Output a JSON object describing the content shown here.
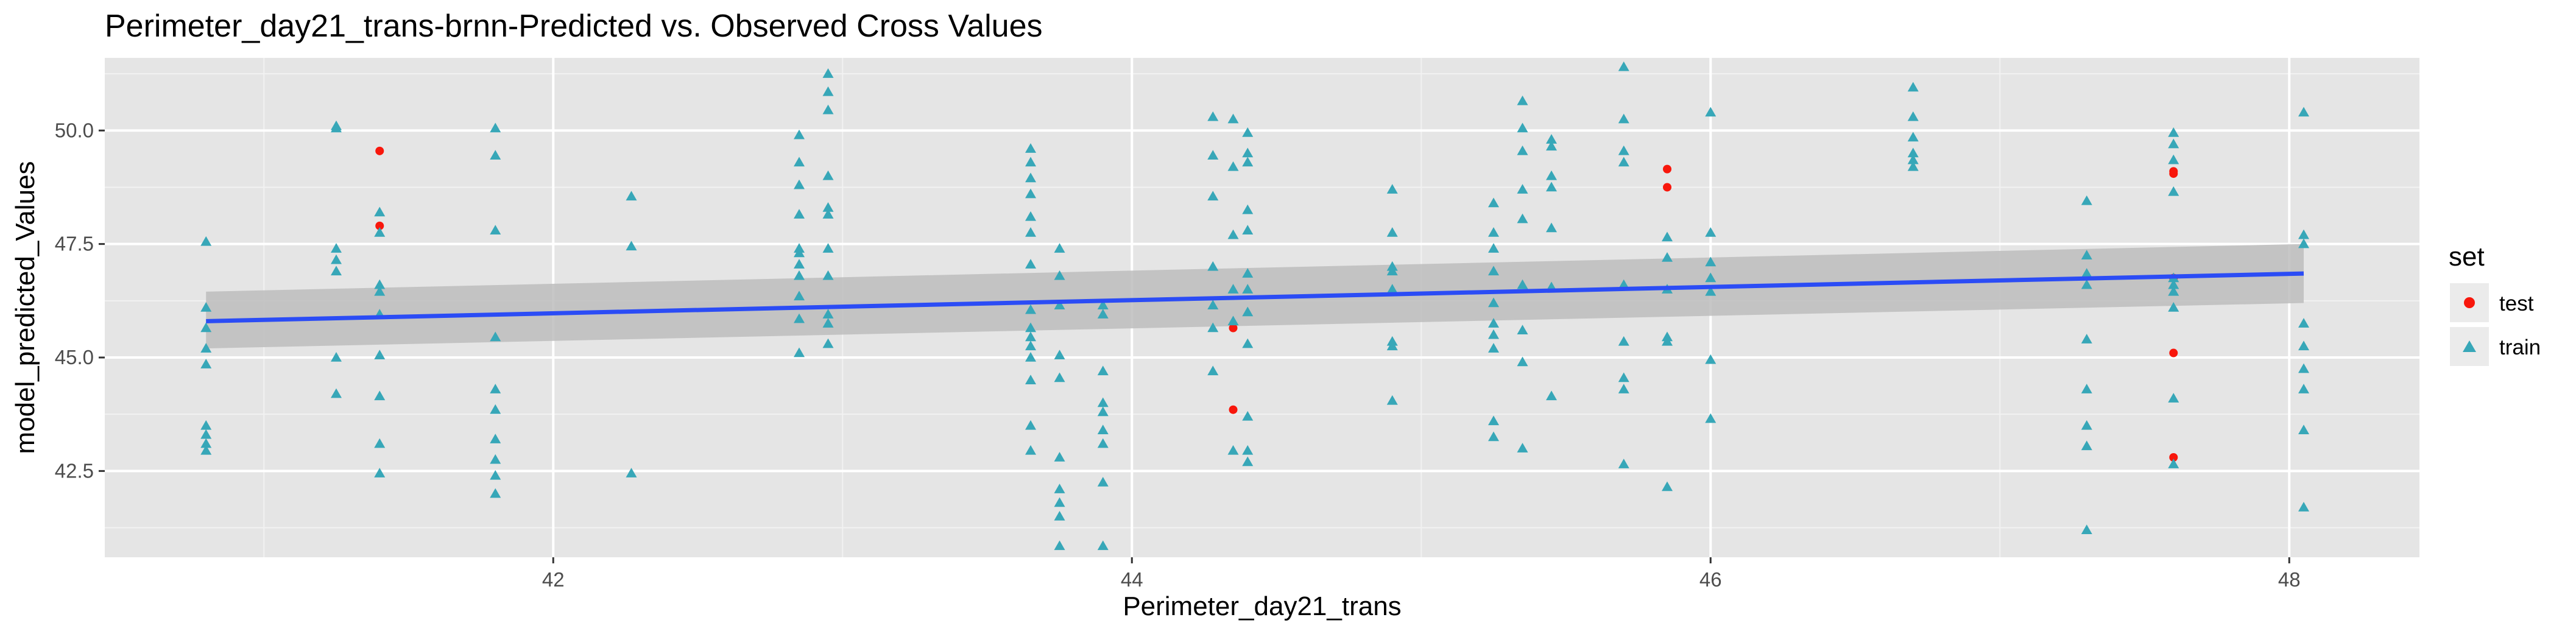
{
  "chart_data": {
    "type": "scatter",
    "title": "Perimeter_day21_trans-brnn-Predicted vs. Observed Cross Values",
    "xlabel": "Perimeter_day21_trans",
    "ylabel": "model_predicted_Values",
    "xlim": [
      40.45,
      48.45
    ],
    "ylim": [
      40.6,
      51.6
    ],
    "x_ticks": [
      42,
      44,
      46,
      48
    ],
    "x_tick_labels": [
      "42",
      "44",
      "46",
      "48"
    ],
    "y_ticks": [
      42.5,
      45.0,
      47.5,
      50.0
    ],
    "y_tick_labels": [
      "42.5",
      "45.0",
      "47.5",
      "50.0"
    ],
    "grid": true,
    "background": "#e5e5e5",
    "legend": {
      "title": "set",
      "position": "right",
      "entries": [
        {
          "label": "test",
          "shape": "circle",
          "color": "#f8170c"
        },
        {
          "label": "train",
          "shape": "triangle",
          "color": "#37a7b8"
        }
      ]
    },
    "series": [
      {
        "name": "test",
        "shape": "circle",
        "color": "#f8170c",
        "points": [
          [
            41.4,
            49.55
          ],
          [
            41.4,
            47.9
          ],
          [
            44.35,
            45.65
          ],
          [
            44.35,
            43.85
          ],
          [
            45.85,
            49.15
          ],
          [
            45.85,
            48.75
          ],
          [
            47.6,
            49.1
          ],
          [
            47.6,
            49.05
          ],
          [
            47.6,
            46.75
          ],
          [
            47.6,
            45.1
          ],
          [
            47.6,
            42.8
          ]
        ]
      },
      {
        "name": "train",
        "shape": "triangle",
        "color": "#37a7b8",
        "points": [
          [
            40.8,
            47.55
          ],
          [
            40.8,
            46.1
          ],
          [
            40.8,
            45.65
          ],
          [
            40.8,
            45.2
          ],
          [
            40.8,
            44.85
          ],
          [
            40.8,
            43.5
          ],
          [
            40.8,
            43.3
          ],
          [
            40.8,
            43.1
          ],
          [
            40.8,
            42.95
          ],
          [
            41.25,
            50.1
          ],
          [
            41.25,
            50.05
          ],
          [
            41.25,
            47.4
          ],
          [
            41.25,
            47.15
          ],
          [
            41.25,
            46.9
          ],
          [
            41.25,
            45.0
          ],
          [
            41.25,
            44.2
          ],
          [
            41.4,
            48.2
          ],
          [
            41.4,
            47.75
          ],
          [
            41.4,
            46.6
          ],
          [
            41.4,
            46.45
          ],
          [
            41.4,
            45.95
          ],
          [
            41.4,
            45.05
          ],
          [
            41.4,
            44.15
          ],
          [
            41.4,
            43.1
          ],
          [
            41.4,
            42.45
          ],
          [
            41.8,
            50.05
          ],
          [
            41.8,
            49.45
          ],
          [
            41.8,
            47.8
          ],
          [
            41.8,
            45.45
          ],
          [
            41.8,
            44.3
          ],
          [
            41.8,
            43.85
          ],
          [
            41.8,
            43.2
          ],
          [
            41.8,
            42.75
          ],
          [
            41.8,
            42.4
          ],
          [
            41.8,
            42.0
          ],
          [
            42.27,
            48.55
          ],
          [
            42.27,
            47.45
          ],
          [
            42.27,
            42.45
          ],
          [
            42.85,
            49.9
          ],
          [
            42.85,
            49.3
          ],
          [
            42.85,
            48.8
          ],
          [
            42.85,
            48.15
          ],
          [
            42.85,
            47.4
          ],
          [
            42.85,
            47.3
          ],
          [
            42.85,
            47.05
          ],
          [
            42.85,
            46.8
          ],
          [
            42.85,
            46.35
          ],
          [
            42.85,
            45.85
          ],
          [
            42.85,
            45.1
          ],
          [
            42.95,
            51.25
          ],
          [
            42.95,
            50.85
          ],
          [
            42.95,
            50.45
          ],
          [
            42.95,
            49.0
          ],
          [
            42.95,
            48.3
          ],
          [
            42.95,
            48.15
          ],
          [
            42.95,
            47.4
          ],
          [
            42.95,
            46.8
          ],
          [
            42.95,
            45.95
          ],
          [
            42.95,
            45.75
          ],
          [
            42.95,
            45.3
          ],
          [
            43.65,
            49.6
          ],
          [
            43.65,
            49.3
          ],
          [
            43.65,
            48.95
          ],
          [
            43.65,
            48.6
          ],
          [
            43.65,
            48.1
          ],
          [
            43.65,
            47.75
          ],
          [
            43.65,
            47.05
          ],
          [
            43.65,
            46.05
          ],
          [
            43.65,
            45.65
          ],
          [
            43.65,
            45.45
          ],
          [
            43.65,
            45.25
          ],
          [
            43.65,
            45.0
          ],
          [
            43.65,
            44.5
          ],
          [
            43.65,
            43.5
          ],
          [
            43.65,
            42.95
          ],
          [
            43.75,
            47.4
          ],
          [
            43.75,
            46.8
          ],
          [
            43.75,
            46.15
          ],
          [
            43.75,
            45.05
          ],
          [
            43.75,
            44.55
          ],
          [
            43.75,
            42.8
          ],
          [
            43.75,
            42.1
          ],
          [
            43.75,
            41.8
          ],
          [
            43.75,
            41.5
          ],
          [
            43.75,
            40.85
          ],
          [
            43.9,
            46.15
          ],
          [
            43.9,
            45.95
          ],
          [
            43.9,
            44.7
          ],
          [
            43.9,
            44.0
          ],
          [
            43.9,
            43.8
          ],
          [
            43.9,
            43.4
          ],
          [
            43.9,
            43.1
          ],
          [
            43.9,
            42.25
          ],
          [
            43.9,
            40.85
          ],
          [
            44.28,
            50.3
          ],
          [
            44.28,
            49.45
          ],
          [
            44.28,
            48.55
          ],
          [
            44.28,
            47.0
          ],
          [
            44.28,
            46.15
          ],
          [
            44.28,
            45.65
          ],
          [
            44.28,
            44.7
          ],
          [
            44.35,
            50.25
          ],
          [
            44.35,
            49.2
          ],
          [
            44.35,
            47.7
          ],
          [
            44.35,
            46.5
          ],
          [
            44.35,
            45.8
          ],
          [
            44.35,
            42.95
          ],
          [
            44.4,
            49.95
          ],
          [
            44.4,
            49.5
          ],
          [
            44.4,
            49.3
          ],
          [
            44.4,
            48.25
          ],
          [
            44.4,
            47.8
          ],
          [
            44.4,
            46.85
          ],
          [
            44.4,
            46.5
          ],
          [
            44.4,
            46.0
          ],
          [
            44.4,
            45.3
          ],
          [
            44.4,
            43.7
          ],
          [
            44.4,
            42.95
          ],
          [
            44.4,
            42.7
          ],
          [
            44.9,
            48.7
          ],
          [
            44.9,
            47.75
          ],
          [
            44.9,
            47.0
          ],
          [
            44.9,
            46.9
          ],
          [
            44.9,
            46.5
          ],
          [
            44.9,
            45.35
          ],
          [
            44.9,
            45.25
          ],
          [
            44.9,
            44.05
          ],
          [
            45.25,
            48.4
          ],
          [
            45.25,
            47.75
          ],
          [
            45.25,
            47.4
          ],
          [
            45.25,
            46.9
          ],
          [
            45.25,
            46.2
          ],
          [
            45.25,
            45.75
          ],
          [
            45.25,
            45.5
          ],
          [
            45.25,
            45.2
          ],
          [
            45.25,
            43.6
          ],
          [
            45.25,
            43.25
          ],
          [
            45.35,
            50.65
          ],
          [
            45.35,
            50.05
          ],
          [
            45.35,
            49.55
          ],
          [
            45.35,
            48.7
          ],
          [
            45.35,
            48.05
          ],
          [
            45.35,
            46.6
          ],
          [
            45.35,
            45.6
          ],
          [
            45.35,
            44.9
          ],
          [
            45.35,
            43.0
          ],
          [
            45.45,
            49.8
          ],
          [
            45.45,
            49.65
          ],
          [
            45.45,
            49.0
          ],
          [
            45.45,
            48.75
          ],
          [
            45.45,
            47.85
          ],
          [
            45.45,
            46.55
          ],
          [
            45.45,
            44.15
          ],
          [
            45.7,
            51.4
          ],
          [
            45.7,
            50.25
          ],
          [
            45.7,
            49.55
          ],
          [
            45.7,
            49.3
          ],
          [
            45.7,
            46.6
          ],
          [
            45.7,
            45.35
          ],
          [
            45.7,
            44.55
          ],
          [
            45.7,
            44.3
          ],
          [
            45.7,
            42.65
          ],
          [
            45.85,
            47.65
          ],
          [
            45.85,
            47.2
          ],
          [
            45.85,
            46.5
          ],
          [
            45.85,
            45.45
          ],
          [
            45.85,
            45.35
          ],
          [
            45.85,
            42.15
          ],
          [
            46.0,
            50.4
          ],
          [
            46.0,
            47.75
          ],
          [
            46.0,
            47.1
          ],
          [
            46.0,
            46.75
          ],
          [
            46.0,
            46.45
          ],
          [
            46.0,
            44.95
          ],
          [
            46.0,
            43.65
          ],
          [
            46.7,
            50.95
          ],
          [
            46.7,
            50.3
          ],
          [
            46.7,
            49.85
          ],
          [
            46.7,
            49.5
          ],
          [
            46.7,
            49.35
          ],
          [
            46.7,
            49.2
          ],
          [
            47.3,
            48.45
          ],
          [
            47.3,
            47.25
          ],
          [
            47.3,
            46.85
          ],
          [
            47.3,
            46.6
          ],
          [
            47.3,
            45.4
          ],
          [
            47.3,
            44.3
          ],
          [
            47.3,
            43.5
          ],
          [
            47.3,
            43.05
          ],
          [
            47.3,
            41.2
          ],
          [
            47.6,
            49.95
          ],
          [
            47.6,
            49.7
          ],
          [
            47.6,
            49.35
          ],
          [
            47.6,
            48.65
          ],
          [
            47.6,
            46.75
          ],
          [
            47.6,
            46.6
          ],
          [
            47.6,
            46.45
          ],
          [
            47.6,
            46.1
          ],
          [
            47.6,
            44.1
          ],
          [
            47.6,
            42.65
          ],
          [
            48.05,
            50.4
          ],
          [
            48.05,
            47.7
          ],
          [
            48.05,
            47.5
          ],
          [
            48.05,
            45.75
          ],
          [
            48.05,
            45.25
          ],
          [
            48.05,
            44.75
          ],
          [
            48.05,
            44.3
          ],
          [
            48.05,
            43.4
          ],
          [
            48.05,
            41.7
          ]
        ]
      }
    ],
    "trend": {
      "method": "linear",
      "color": "#2b4cf5",
      "band_color": "#bdbdbd",
      "x": [
        40.8,
        48.05
      ],
      "y": [
        45.8,
        46.85
      ],
      "ci_lower": [
        45.2,
        46.2
      ],
      "ci_upper": [
        46.45,
        47.5
      ]
    }
  }
}
